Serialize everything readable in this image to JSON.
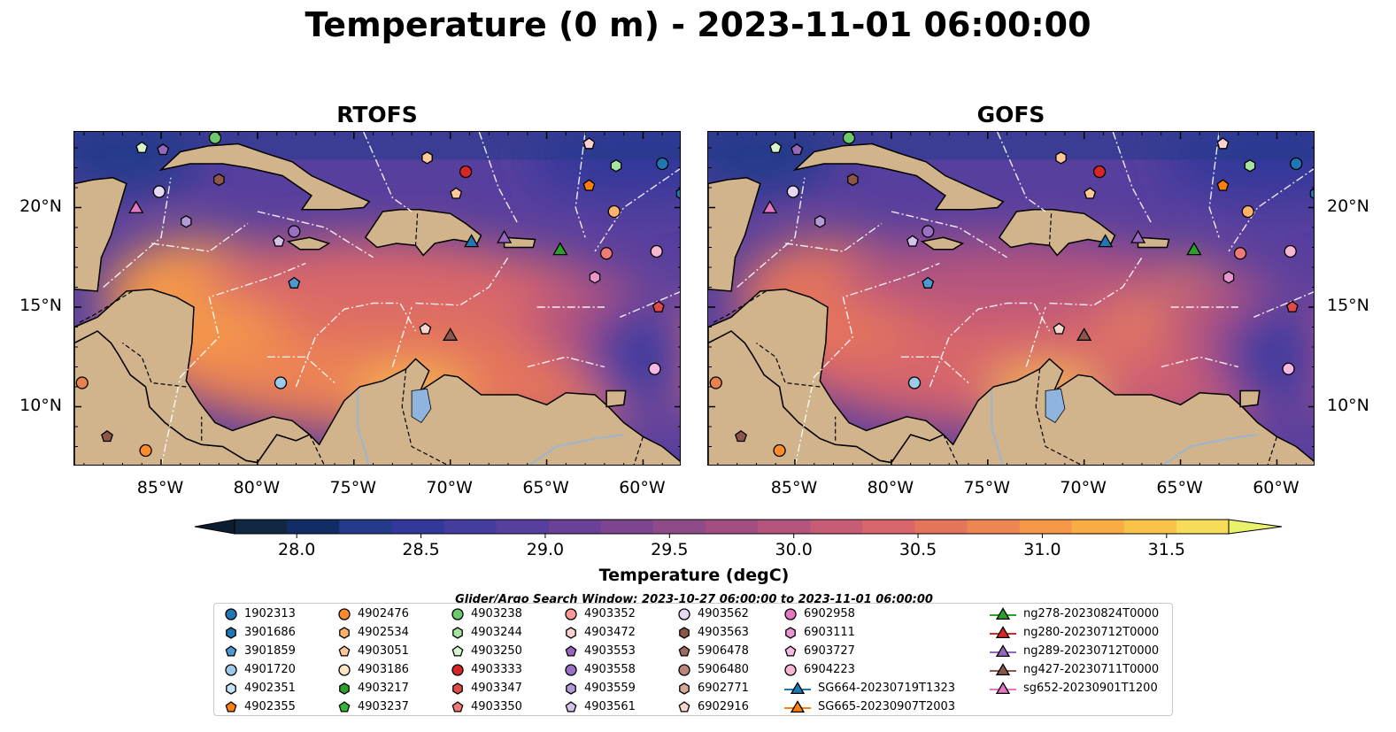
{
  "title": "Temperature (0 m) - 2023-11-01 06:00:00",
  "panels": [
    {
      "title": "RTOFS"
    },
    {
      "title": "GOFS"
    }
  ],
  "axes": {
    "lon_ticks": [
      "85°W",
      "80°W",
      "75°W",
      "70°W",
      "65°W",
      "60°W"
    ],
    "lat_ticks": [
      "20°N",
      "15°N",
      "10°N"
    ]
  },
  "colorbar": {
    "label": "Temperature (degC)",
    "ticks": [
      "28.0",
      "28.5",
      "29.0",
      "29.5",
      "30.0",
      "30.5",
      "31.0",
      "31.5"
    ],
    "range": [
      27.75,
      31.75
    ],
    "extend": "both",
    "colors": [
      "#102840",
      "#122d66",
      "#243a8a",
      "#33399a",
      "#443d9e",
      "#573f9e",
      "#6a4196",
      "#7d458f",
      "#8f4a88",
      "#a24e83",
      "#b5557e",
      "#c75c76",
      "#d8666a",
      "#e5745c",
      "#ee8653",
      "#f49848",
      "#f8ac43",
      "#f9c34a",
      "#f6dc58"
    ],
    "over_color": "#e8f26a",
    "under_color": "#0b1d33"
  },
  "search_window": "Glider/Argo Search Window: 2023-10-27 06:00:00 to 2023-11-01 06:00:00",
  "map_colors": {
    "land": "#d2b48c",
    "lakes": "#8fb4dd",
    "rivers": "#9ab7d0"
  },
  "legend": {
    "columns": [
      [
        {
          "label": "1902313",
          "marker": "circle",
          "color": "#1f77b4"
        },
        {
          "label": "3901686",
          "marker": "hexagon",
          "color": "#1f77b4"
        },
        {
          "label": "3901859",
          "marker": "pentagon",
          "color": "#4d9ad2"
        },
        {
          "label": "4901720",
          "marker": "circle",
          "color": "#9ecae9"
        },
        {
          "label": "4902351",
          "marker": "hexagon",
          "color": "#c6e2f5"
        },
        {
          "label": "4902355",
          "marker": "pentagon",
          "color": "#ff7f0e"
        }
      ],
      [
        {
          "label": "4902476",
          "marker": "circle",
          "color": "#ff8c2a"
        },
        {
          "label": "4902534",
          "marker": "hexagon",
          "color": "#ffb26b"
        },
        {
          "label": "4903051",
          "marker": "pentagon",
          "color": "#ffc899"
        },
        {
          "label": "4903186",
          "marker": "circle",
          "color": "#ffe5c7"
        },
        {
          "label": "4903217",
          "marker": "hexagon",
          "color": "#2ca02c"
        },
        {
          "label": "4903237",
          "marker": "pentagon",
          "color": "#36b636"
        }
      ],
      [
        {
          "label": "4903238",
          "marker": "circle",
          "color": "#6cc96c"
        },
        {
          "label": "4903244",
          "marker": "hexagon",
          "color": "#a6e3a0"
        },
        {
          "label": "4903250",
          "marker": "pentagon",
          "color": "#d6f5cf"
        },
        {
          "label": "4903333",
          "marker": "circle",
          "color": "#d62728"
        },
        {
          "label": "4903347",
          "marker": "hexagon",
          "color": "#e04a4a"
        },
        {
          "label": "4903350",
          "marker": "pentagon",
          "color": "#f07a7a"
        }
      ],
      [
        {
          "label": "4903352",
          "marker": "circle",
          "color": "#ff9896"
        },
        {
          "label": "4903472",
          "marker": "hexagon",
          "color": "#ffd1cf"
        },
        {
          "label": "4903553",
          "marker": "pentagon",
          "color": "#9467bd"
        },
        {
          "label": "4903558",
          "marker": "circle",
          "color": "#9a70c4"
        },
        {
          "label": "4903559",
          "marker": "hexagon",
          "color": "#b39ad6"
        },
        {
          "label": "4903561",
          "marker": "pentagon",
          "color": "#d3c2ea"
        }
      ],
      [
        {
          "label": "4903562",
          "marker": "circle",
          "color": "#e6d8f3"
        },
        {
          "label": "4903563",
          "marker": "hexagon",
          "color": "#8c564b"
        },
        {
          "label": "5906478",
          "marker": "pentagon",
          "color": "#9c6a5e"
        },
        {
          "label": "5906480",
          "marker": "circle",
          "color": "#b8877a"
        },
        {
          "label": "6902771",
          "marker": "hexagon",
          "color": "#d4aa9b"
        },
        {
          "label": "6902916",
          "marker": "pentagon",
          "color": "#f4d7cd"
        }
      ],
      [
        {
          "label": "6902958",
          "marker": "circle",
          "color": "#e377c2"
        },
        {
          "label": "6903111",
          "marker": "hexagon",
          "color": "#ea94d1"
        },
        {
          "label": "6903727",
          "marker": "pentagon",
          "color": "#f4b6e2"
        },
        {
          "label": "6904223",
          "marker": "circle",
          "color": "#f7b6d2"
        },
        {
          "label": "SG664-20230719T1323",
          "marker": "triangle-line",
          "color": "#1f77b4"
        },
        {
          "label": "SG665-20230907T2003",
          "marker": "triangle-line",
          "color": "#ff7f0e"
        }
      ],
      [
        {
          "label": "ng278-20230824T0000",
          "marker": "triangle-line",
          "color": "#2ca02c"
        },
        {
          "label": "ng280-20230712T0000",
          "marker": "triangle-line",
          "color": "#d62728"
        },
        {
          "label": "ng289-20230712T0000",
          "marker": "triangle-line",
          "color": "#9467bd"
        },
        {
          "label": "ng427-20230711T0000",
          "marker": "triangle-line",
          "color": "#8c564b"
        },
        {
          "label": "sg652-20230901T1200",
          "marker": "triangle-line",
          "color": "#e377c2"
        }
      ]
    ]
  },
  "map_markers": [
    {
      "lon": -59.0,
      "lat": 22.2,
      "marker": "circle",
      "color": "#1f77b4"
    },
    {
      "lon": -58.0,
      "lat": 20.7,
      "marker": "hexagon",
      "color": "#1f77b4"
    },
    {
      "lon": -78.1,
      "lat": 16.2,
      "marker": "pentagon",
      "color": "#4d9ad2"
    },
    {
      "lon": -78.8,
      "lat": 11.2,
      "marker": "circle",
      "color": "#9ecae9"
    },
    {
      "lon": -62.8,
      "lat": 21.1,
      "marker": "pentagon",
      "color": "#ff7f0e"
    },
    {
      "lon": -85.8,
      "lat": 7.8,
      "marker": "circle",
      "color": "#ff8c2a"
    },
    {
      "lon": -89.1,
      "lat": 11.2,
      "marker": "circle",
      "color": "#e8824f"
    },
    {
      "lon": -61.5,
      "lat": 19.8,
      "marker": "circle",
      "color": "#ffb26b"
    },
    {
      "lon": -69.7,
      "lat": 20.7,
      "marker": "pentagon",
      "color": "#ffc899"
    },
    {
      "lon": -71.2,
      "lat": 22.5,
      "marker": "hexagon",
      "color": "#ffc899"
    },
    {
      "lon": -82.2,
      "lat": 23.5,
      "marker": "circle",
      "color": "#6cc96c"
    },
    {
      "lon": -61.4,
      "lat": 22.1,
      "marker": "hexagon",
      "color": "#a6e3a0"
    },
    {
      "lon": -86.0,
      "lat": 23.0,
      "marker": "pentagon",
      "color": "#d6f5cf"
    },
    {
      "lon": -69.2,
      "lat": 21.8,
      "marker": "circle",
      "color": "#d62728"
    },
    {
      "lon": -59.2,
      "lat": 15.0,
      "marker": "pentagon",
      "color": "#e04a4a"
    },
    {
      "lon": -61.9,
      "lat": 17.7,
      "marker": "circle",
      "color": "#f07a7a"
    },
    {
      "lon": -62.8,
      "lat": 23.2,
      "marker": "pentagon",
      "color": "#ffd1cf"
    },
    {
      "lon": -84.9,
      "lat": 22.9,
      "marker": "pentagon",
      "color": "#9467bd"
    },
    {
      "lon": -83.7,
      "lat": 19.3,
      "marker": "hexagon",
      "color": "#b39ad6"
    },
    {
      "lon": -78.1,
      "lat": 18.8,
      "marker": "circle",
      "color": "#9a70c4"
    },
    {
      "lon": -78.9,
      "lat": 18.3,
      "marker": "pentagon",
      "color": "#d3c2ea"
    },
    {
      "lon": -85.1,
      "lat": 20.8,
      "marker": "circle",
      "color": "#e6d8f3"
    },
    {
      "lon": -87.8,
      "lat": 8.5,
      "marker": "pentagon",
      "color": "#8c564b"
    },
    {
      "lon": -82.0,
      "lat": 21.4,
      "marker": "hexagon",
      "color": "#8c564b"
    },
    {
      "lon": -71.3,
      "lat": 13.9,
      "marker": "pentagon",
      "color": "#f4d7cd"
    },
    {
      "lon": -62.5,
      "lat": 16.5,
      "marker": "hexagon",
      "color": "#ea94d1"
    },
    {
      "lon": -59.4,
      "lat": 11.9,
      "marker": "circle",
      "color": "#f4b6e2"
    },
    {
      "lon": -59.3,
      "lat": 17.8,
      "marker": "circle",
      "color": "#f7b6d2"
    },
    {
      "lon": -68.9,
      "lat": 18.3,
      "marker": "triangle",
      "color": "#1f77b4"
    },
    {
      "lon": -64.3,
      "lat": 17.9,
      "marker": "triangle",
      "color": "#2ca02c"
    },
    {
      "lon": -67.2,
      "lat": 18.5,
      "marker": "triangle",
      "color": "#9467bd"
    },
    {
      "lon": -70.0,
      "lat": 13.6,
      "marker": "triangle",
      "color": "#8c564b"
    },
    {
      "lon": -86.3,
      "lat": 20.0,
      "marker": "triangle",
      "color": "#e377c2"
    }
  ]
}
